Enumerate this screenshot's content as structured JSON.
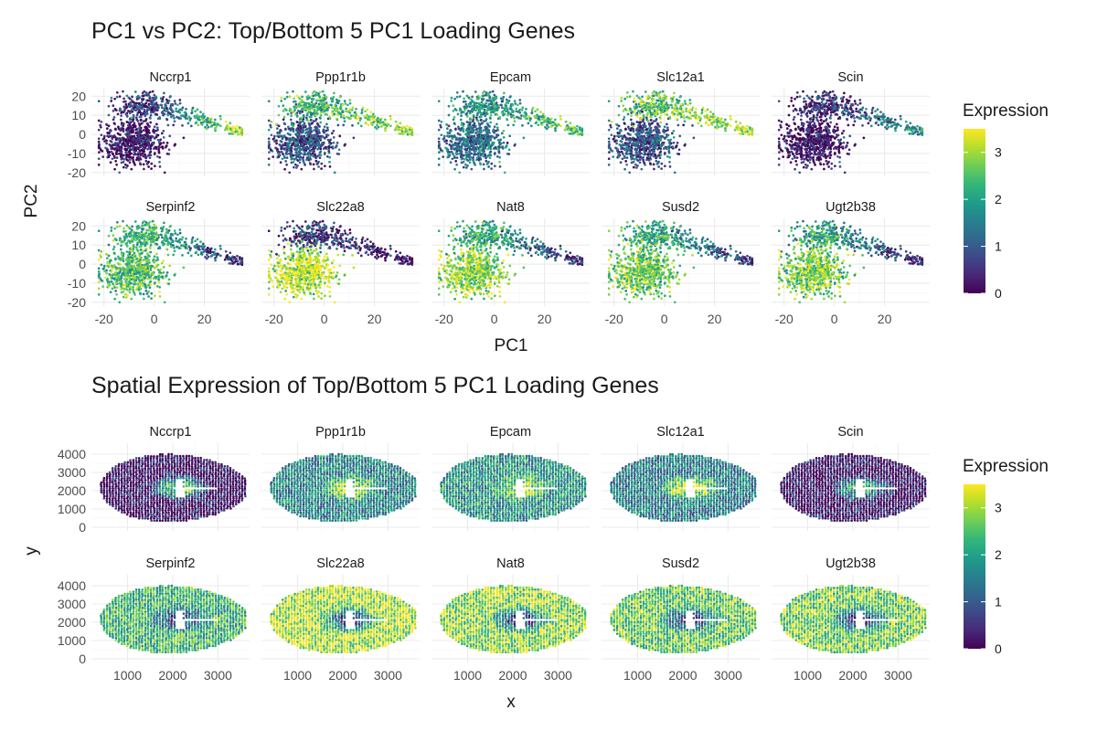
{
  "genes": [
    "Nccrp1",
    "Ppp1r1b",
    "Epcam",
    "Slc12a1",
    "Scin",
    "Serpinf2",
    "Slc22a8",
    "Nat8",
    "Susd2",
    "Ugt2b38"
  ],
  "gene_groups": {
    "high_pc1_loading": [
      "Nccrp1",
      "Ppp1r1b",
      "Epcam",
      "Slc12a1",
      "Scin"
    ],
    "low_pc1_loading": [
      "Serpinf2",
      "Slc22a8",
      "Nat8",
      "Susd2",
      "Ugt2b38"
    ]
  },
  "colors": {
    "viridis": [
      "#440154",
      "#482878",
      "#3e4989",
      "#31688e",
      "#26828e",
      "#1f9e89",
      "#35b779",
      "#6ece58",
      "#b5de2b",
      "#fde725"
    ],
    "grid_major": "#ebebeb",
    "grid_minor": "#f5f5f5",
    "text": "#1a1a1a",
    "tick_text": "#4d4d4d"
  },
  "chart_data": [
    {
      "type": "scatter",
      "panel": "pca",
      "title": "PC1 vs PC2: Top/Bottom 5 PC1 Loading Genes",
      "xlabel": "PC1",
      "ylabel": "PC2",
      "facet_rows": 2,
      "facet_cols": 5,
      "xlim": [
        -25,
        38
      ],
      "ylim": [
        -22,
        24
      ],
      "xticks": [
        -20,
        0,
        20
      ],
      "xtick_labels": [
        "-20",
        "0",
        "20"
      ],
      "yticks": [
        -20,
        -10,
        0,
        10,
        20
      ],
      "ytick_labels": [
        "-20",
        "-10",
        "0",
        "10",
        "20"
      ],
      "legend": {
        "title": "Expression",
        "range": [
          0,
          3.5
        ],
        "ticks": [
          0,
          1,
          2,
          3
        ],
        "tick_labels": [
          "0",
          "1",
          "2",
          "3"
        ],
        "position": "right"
      }
    },
    {
      "type": "scatter",
      "panel": "spatial",
      "title": "Spatial Expression of Top/Bottom 5 PC1 Loading Genes",
      "xlabel": "x",
      "ylabel": "y",
      "facet_rows": 2,
      "facet_cols": 5,
      "xlim": [
        200,
        3700
      ],
      "ylim": [
        -200,
        4600
      ],
      "xticks": [
        1000,
        2000,
        3000
      ],
      "xtick_labels": [
        "1000",
        "2000",
        "3000"
      ],
      "yticks": [
        0,
        1000,
        2000,
        3000,
        4000
      ],
      "ytick_labels": [
        "0",
        "1000",
        "2000",
        "3000",
        "4000"
      ],
      "legend": {
        "title": "Expression",
        "range": [
          0,
          3.5
        ],
        "ticks": [
          0,
          1,
          2,
          3
        ],
        "tick_labels": [
          "0",
          "1",
          "2",
          "3"
        ],
        "position": "right"
      }
    }
  ]
}
